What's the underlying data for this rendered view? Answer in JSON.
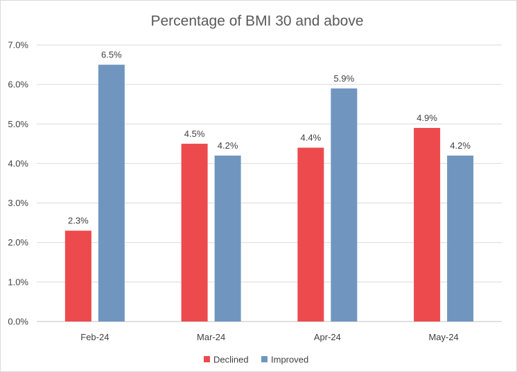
{
  "chart_data": {
    "type": "bar",
    "title": "Percentage of BMI 30 and above",
    "xlabel": "",
    "ylabel": "",
    "categories": [
      "Feb-24",
      "Mar-24",
      "Apr-24",
      "May-24"
    ],
    "ylim": [
      0,
      7
    ],
    "y_ticks": [
      "0.0%",
      "1.0%",
      "2.0%",
      "3.0%",
      "4.0%",
      "5.0%",
      "6.0%",
      "7.0%"
    ],
    "grid": true,
    "legend_position": "bottom",
    "series": [
      {
        "name": "Declined",
        "color": "#ed4a4d",
        "values": [
          2.3,
          4.5,
          4.4,
          4.9
        ],
        "labels": [
          "2.3%",
          "4.5%",
          "4.4%",
          "4.9%"
        ]
      },
      {
        "name": "Improved",
        "color": "#7096c0",
        "values": [
          6.5,
          4.2,
          5.9,
          4.2
        ],
        "labels": [
          "6.5%",
          "4.2%",
          "5.9%",
          "4.2%"
        ]
      }
    ]
  }
}
